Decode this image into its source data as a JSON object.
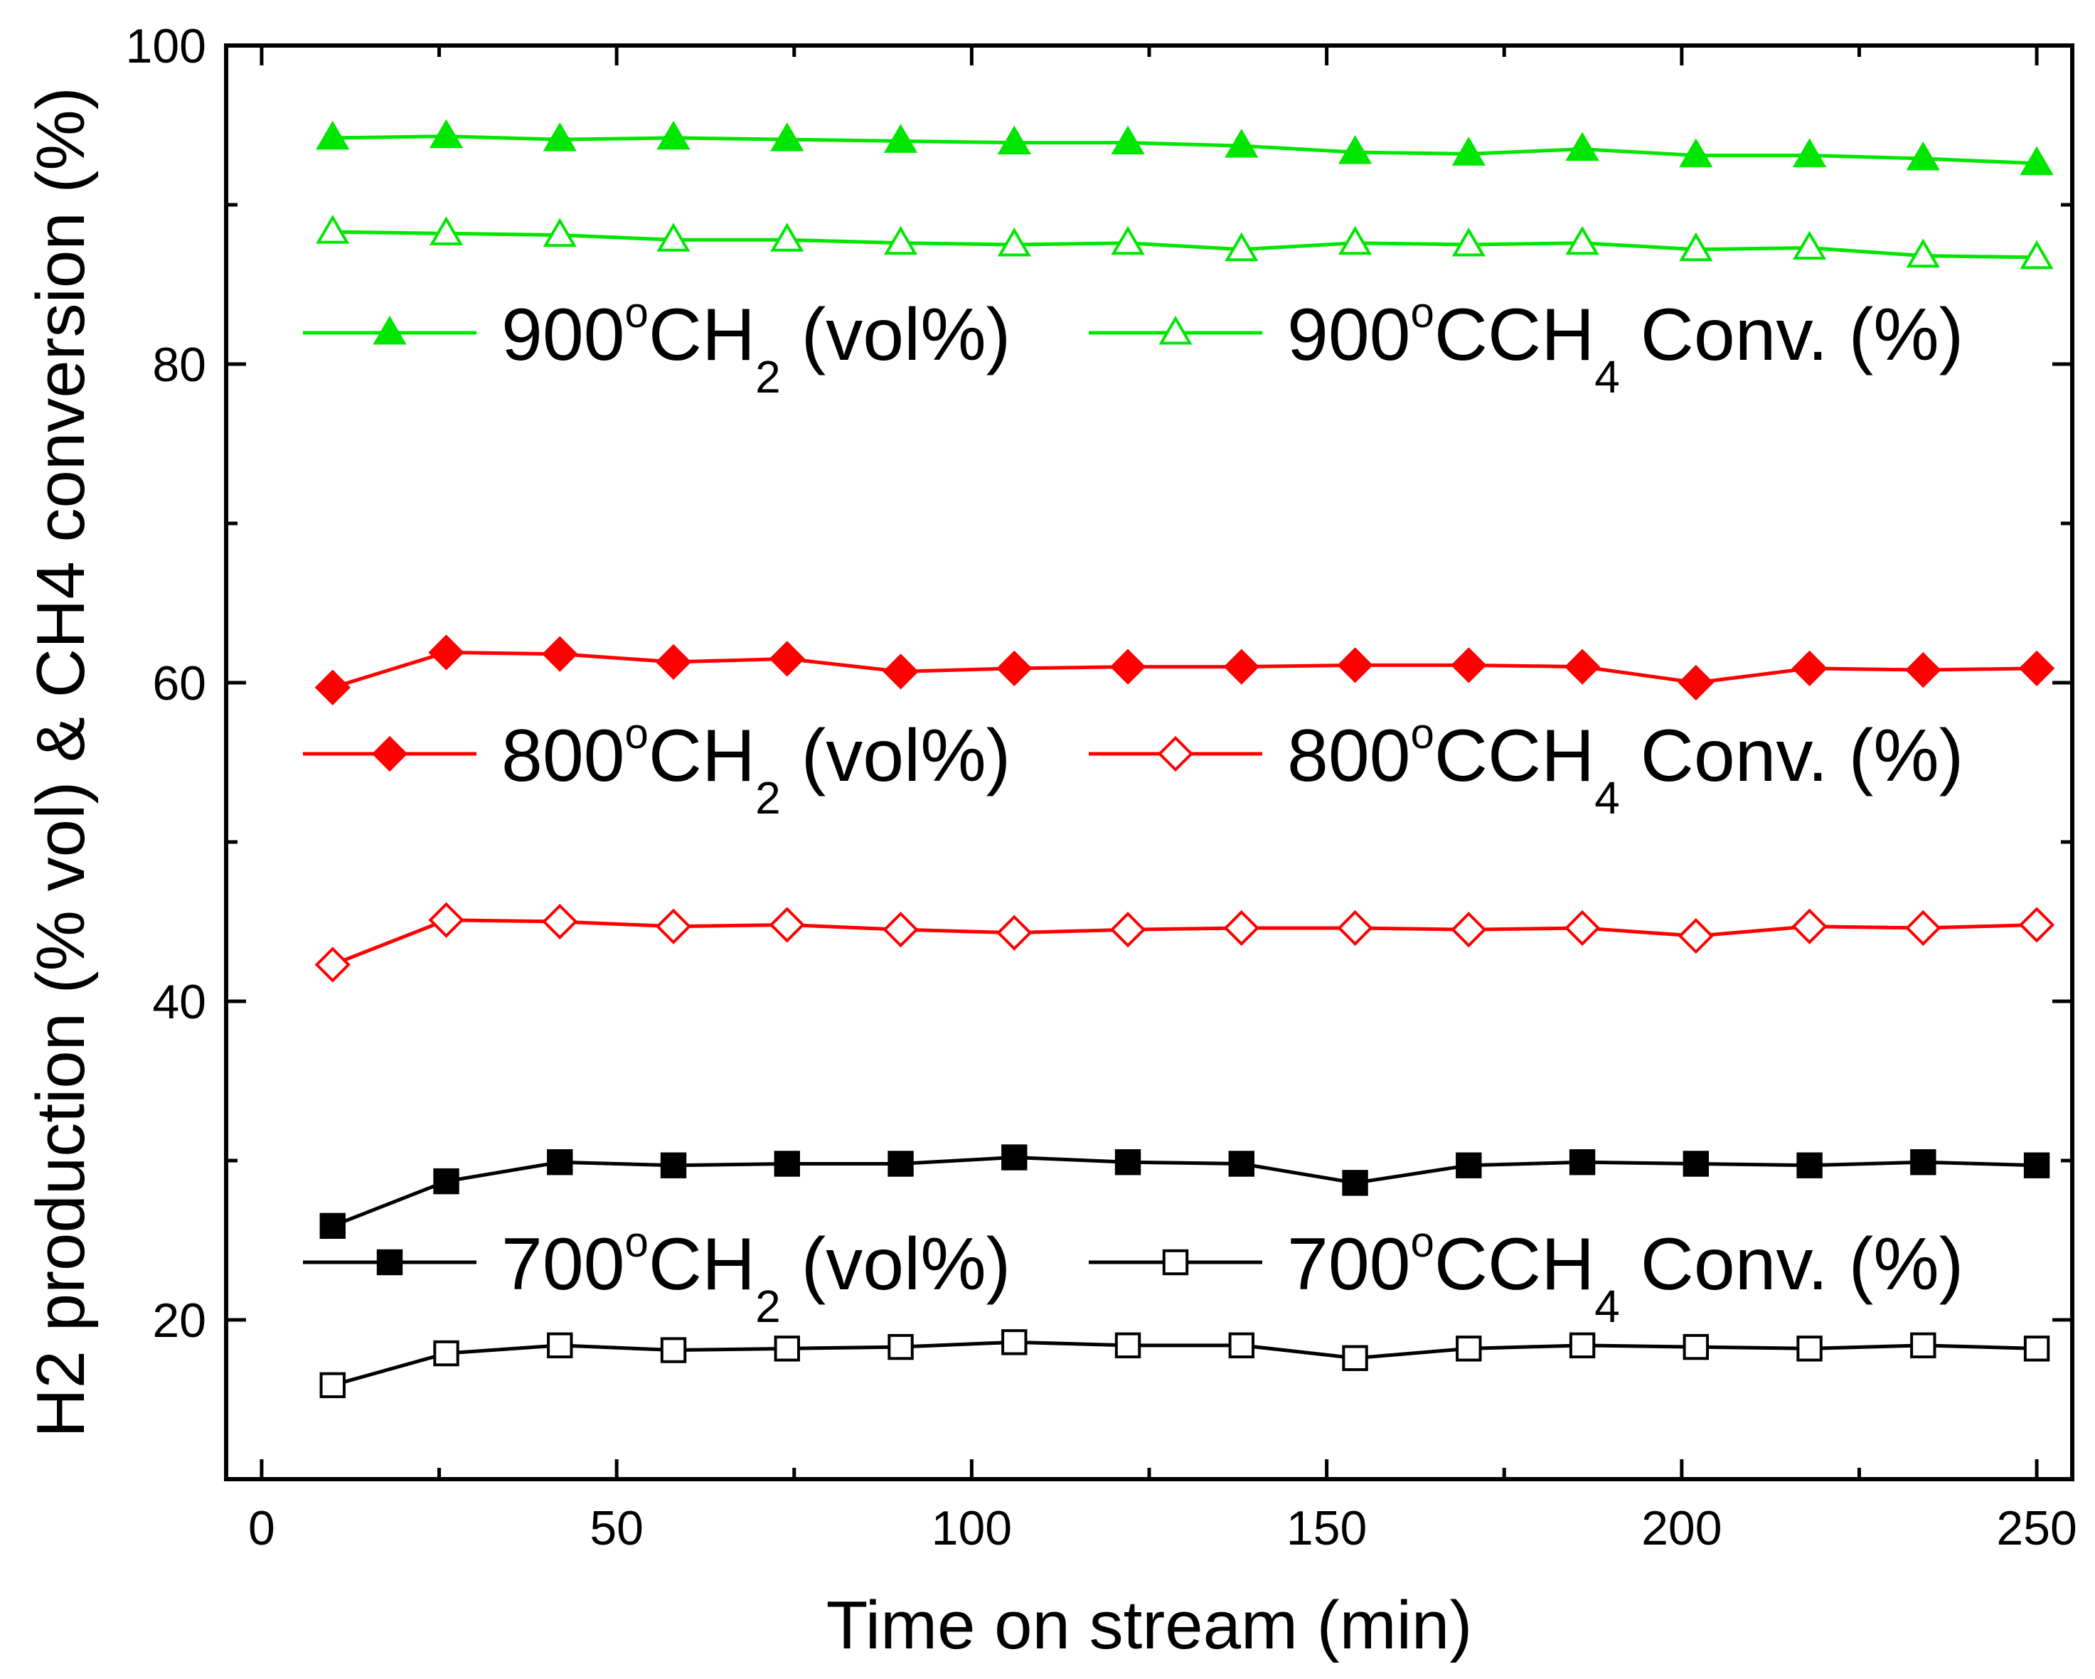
{
  "chart_data": {
    "type": "line",
    "xlabel": "Time on stream (min)",
    "ylabel": "H2 production (% vol) & CH4 conversion (%)",
    "xlim": [
      -5,
      255
    ],
    "ylim": [
      10,
      100
    ],
    "xticks": [
      0,
      50,
      100,
      150,
      200,
      250
    ],
    "yticks": [
      20,
      40,
      60,
      80,
      100
    ],
    "x": [
      10,
      26,
      42,
      58,
      74,
      90,
      106,
      122,
      138,
      154,
      170,
      186,
      202,
      218,
      234,
      250
    ],
    "series": [
      {
        "name": "900°C H2 (vol%)",
        "temp": "900",
        "sup": "o",
        "unit": "C",
        "gas": "H",
        "sub": "2",
        "tail": " (vol%)",
        "color": "#00e600",
        "marker": "triangle",
        "filled": true,
        "values": [
          94.2,
          94.3,
          94.1,
          94.2,
          94.1,
          94.0,
          93.9,
          93.9,
          93.7,
          93.3,
          93.2,
          93.5,
          93.1,
          93.1,
          92.9,
          92.6
        ]
      },
      {
        "name": "900°C CH4 Conv. (%)",
        "temp": "900",
        "sup": "o",
        "unit": "C",
        "gas": "CH",
        "sub": "4",
        "tail": " Conv. (%)",
        "color": "#00e600",
        "marker": "triangle",
        "filled": false,
        "values": [
          88.3,
          88.2,
          88.1,
          87.8,
          87.8,
          87.6,
          87.5,
          87.6,
          87.2,
          87.6,
          87.5,
          87.6,
          87.2,
          87.3,
          86.8,
          86.7
        ]
      },
      {
        "name": "800°C H2 (vol%)",
        "temp": "800",
        "sup": "o",
        "unit": "C",
        "gas": "H",
        "sub": "2",
        "tail": " (vol%)",
        "color": "#ff0000",
        "marker": "diamond",
        "filled": true,
        "values": [
          59.7,
          61.9,
          61.8,
          61.3,
          61.5,
          60.7,
          60.9,
          61.0,
          61.0,
          61.1,
          61.1,
          61.0,
          60.0,
          60.9,
          60.8,
          60.9
        ]
      },
      {
        "name": "800°C CH4 Conv. (%)",
        "temp": "800",
        "sup": "o",
        "unit": "C",
        "gas": "CH",
        "sub": "4",
        "tail": " Conv. (%)",
        "color": "#ff0000",
        "marker": "diamond",
        "filled": false,
        "values": [
          42.3,
          45.1,
          45.0,
          44.7,
          44.8,
          44.5,
          44.3,
          44.5,
          44.6,
          44.6,
          44.5,
          44.6,
          44.1,
          44.7,
          44.6,
          44.8
        ]
      },
      {
        "name": "700°C H2 (vol%)",
        "temp": "700",
        "sup": "o",
        "unit": "C",
        "gas": "H",
        "sub": "2",
        "tail": " (vol%)",
        "color": "#000000",
        "marker": "square",
        "filled": true,
        "values": [
          25.9,
          28.7,
          29.9,
          29.7,
          29.8,
          29.8,
          30.2,
          29.9,
          29.8,
          28.6,
          29.7,
          29.9,
          29.8,
          29.7,
          29.9,
          29.7
        ]
      },
      {
        "name": "700°C CH4 Conv. (%)",
        "temp": "700",
        "sup": "o",
        "unit": "C",
        "gas": "CH",
        "sub": "4",
        "tail": " Conv. (%)",
        "color": "#000000",
        "marker": "square",
        "filled": false,
        "values": [
          15.9,
          17.9,
          18.4,
          18.1,
          18.2,
          18.3,
          18.6,
          18.4,
          18.4,
          17.6,
          18.2,
          18.4,
          18.3,
          18.2,
          18.4,
          18.2
        ]
      }
    ]
  }
}
